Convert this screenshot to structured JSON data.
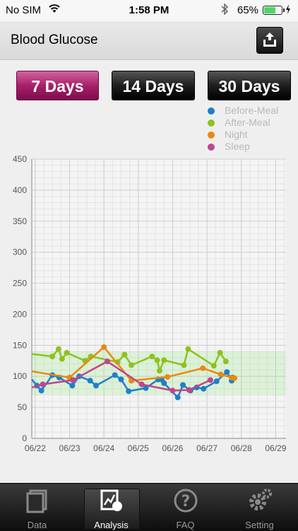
{
  "status_bar": {
    "carrier": "No SIM",
    "time": "1:58 PM",
    "battery": "65%",
    "battery_level": 0.65
  },
  "header": {
    "title": "Blood Glucose"
  },
  "range_buttons": [
    {
      "label": "7 Days",
      "active": true
    },
    {
      "label": "14 Days",
      "active": false
    },
    {
      "label": "30 Days",
      "active": false
    }
  ],
  "chart_data": {
    "type": "line",
    "title": "",
    "xlabel": "",
    "ylabel": "",
    "ylim": [
      0,
      450
    ],
    "yticks": [
      0,
      50,
      100,
      150,
      200,
      250,
      300,
      350,
      400,
      450
    ],
    "xlim": [
      -0.1,
      7.3
    ],
    "xticks": [
      0,
      1,
      2,
      3,
      4,
      5,
      6,
      7
    ],
    "xtick_labels": [
      "06/22",
      "06/23",
      "06/24",
      "06/25",
      "06/26",
      "06/27",
      "06/28",
      "06/29"
    ],
    "target_band": [
      70,
      140
    ],
    "grid": true,
    "legend_position": "top-right",
    "series": [
      {
        "name": "Before-Meal",
        "color": "#1f7fc8",
        "x": [
          -0.1,
          0.05,
          0.18,
          0.5,
          0.7,
          1.08,
          1.28,
          1.6,
          1.77,
          2.32,
          2.5,
          2.72,
          3.22,
          3.58,
          3.68,
          3.75,
          4.15,
          4.3,
          4.52,
          4.7,
          4.9,
          5.28,
          5.58,
          5.72,
          5.75
        ],
        "y": [
          95,
          85,
          77,
          102,
          98,
          85,
          100,
          93,
          85,
          102,
          95,
          76,
          81,
          95,
          95,
          89,
          66,
          86,
          77,
          82,
          80,
          92,
          107,
          93,
          98
        ]
      },
      {
        "name": "After-Meal",
        "color": "#8dc21f",
        "x": [
          -0.1,
          0.5,
          0.68,
          0.78,
          0.92,
          1.45,
          1.62,
          2.4,
          2.6,
          2.8,
          3.4,
          3.55,
          3.62,
          3.75,
          4.33,
          4.45,
          5.2,
          5.38,
          5.55
        ],
        "y": [
          136,
          132,
          144,
          128,
          138,
          125,
          132,
          123,
          135,
          118,
          132,
          126,
          109,
          126,
          118,
          144,
          117,
          138,
          124
        ]
      },
      {
        "name": "Night",
        "color": "#e68a10",
        "x": [
          -0.1,
          1.0,
          2.0,
          2.8,
          3.85,
          4.88,
          5.4,
          5.72,
          5.8
        ],
        "y": [
          108,
          98,
          147,
          93,
          99,
          113,
          103,
          98,
          97
        ]
      },
      {
        "name": "Sleep",
        "color": "#c0468b",
        "x": [
          -0.1,
          0.22,
          1.1,
          2.1,
          3.1,
          4.0,
          4.48,
          5.1
        ],
        "y": [
          82,
          87,
          94,
          124,
          87,
          77,
          78,
          94
        ]
      }
    ]
  },
  "tabs": [
    {
      "label": "Data",
      "icon": "data-icon",
      "selected": false
    },
    {
      "label": "Analysis",
      "icon": "analysis-icon",
      "selected": true
    },
    {
      "label": "FAQ",
      "icon": "faq-icon",
      "selected": false
    },
    {
      "label": "Setting",
      "icon": "setting-icon",
      "selected": false
    }
  ]
}
